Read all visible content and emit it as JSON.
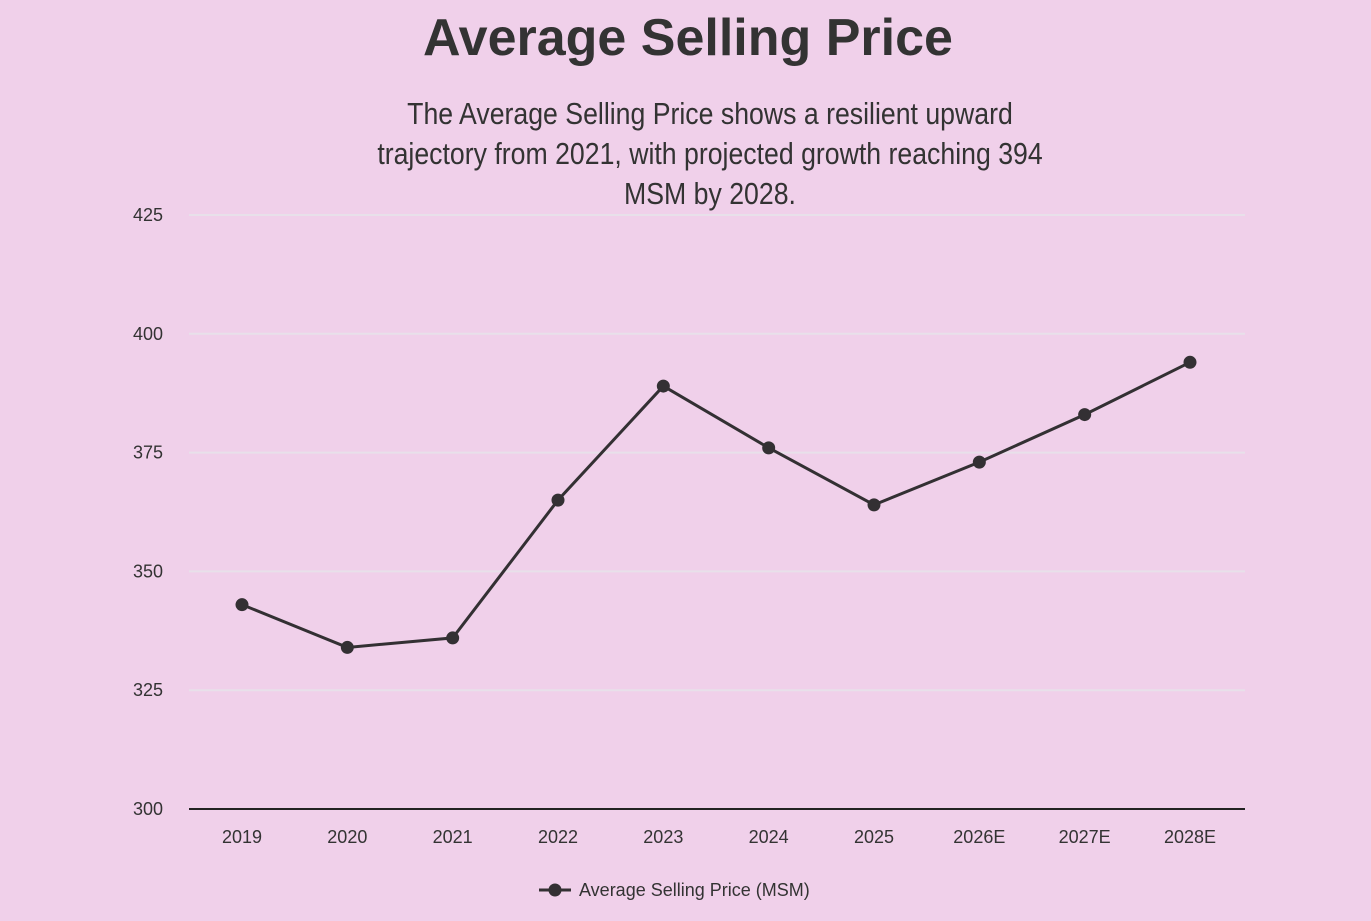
{
  "chart_data": {
    "type": "line",
    "title": "Average Selling Price",
    "subtitle": "The Average Selling Price shows a resilient upward trajectory from 2021, with projected growth reaching 394 MSM by 2028.",
    "categories": [
      "2019",
      "2020",
      "2021",
      "2022",
      "2023",
      "2024",
      "2025",
      "2026E",
      "2027E",
      "2028E"
    ],
    "series": [
      {
        "name": "Average Selling Price (MSM)",
        "values": [
          343,
          334,
          336,
          365,
          389,
          376,
          364,
          373,
          383,
          394
        ]
      }
    ],
    "ylim": [
      300,
      425
    ],
    "yticks": [
      300,
      325,
      350,
      375,
      400,
      425
    ],
    "grid": true,
    "legend": "bottom",
    "colors": {
      "line": "#333033",
      "grid": "#e8e0ea",
      "background": "#f0d0ea"
    }
  }
}
